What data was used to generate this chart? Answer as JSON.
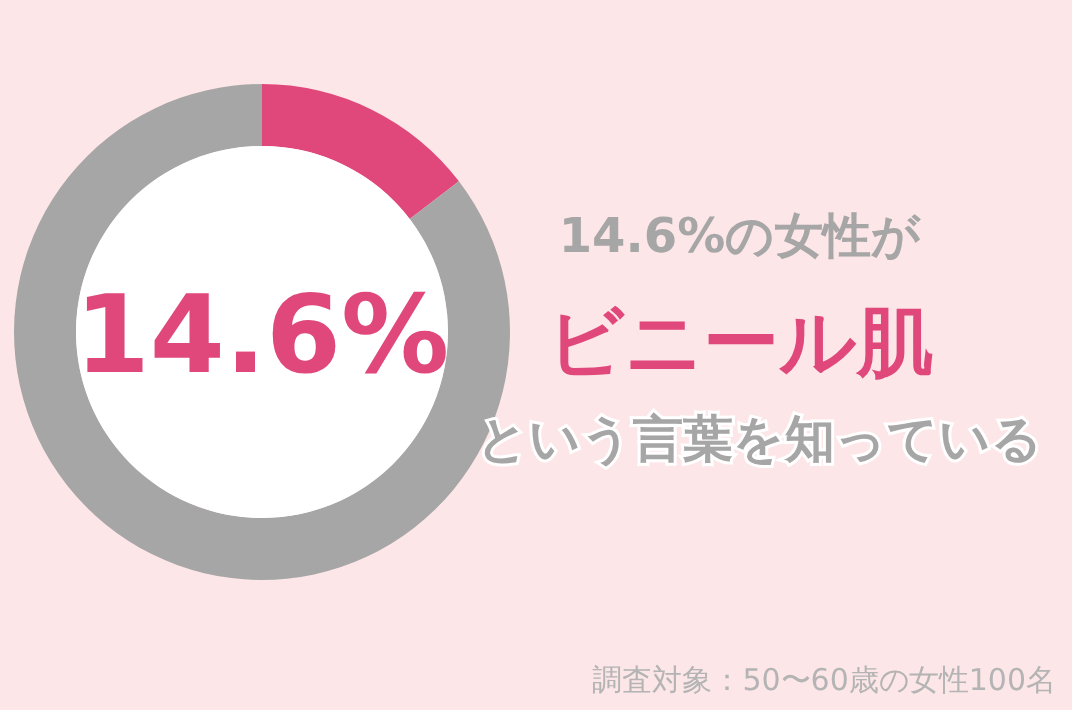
{
  "chart_data": {
    "type": "donut",
    "categories": [
      null,
      null
    ],
    "values": [
      14.6,
      85.4
    ],
    "colors": [
      "#e0487c",
      "#a6a6a6"
    ],
    "value_labels": [
      "14.6%",
      null
    ],
    "annotations": [
      "14.6%の女性が",
      "ビニール肌",
      "という言葉を知っている",
      "調査対象：50〜60歳の女性100名"
    ]
  }
}
